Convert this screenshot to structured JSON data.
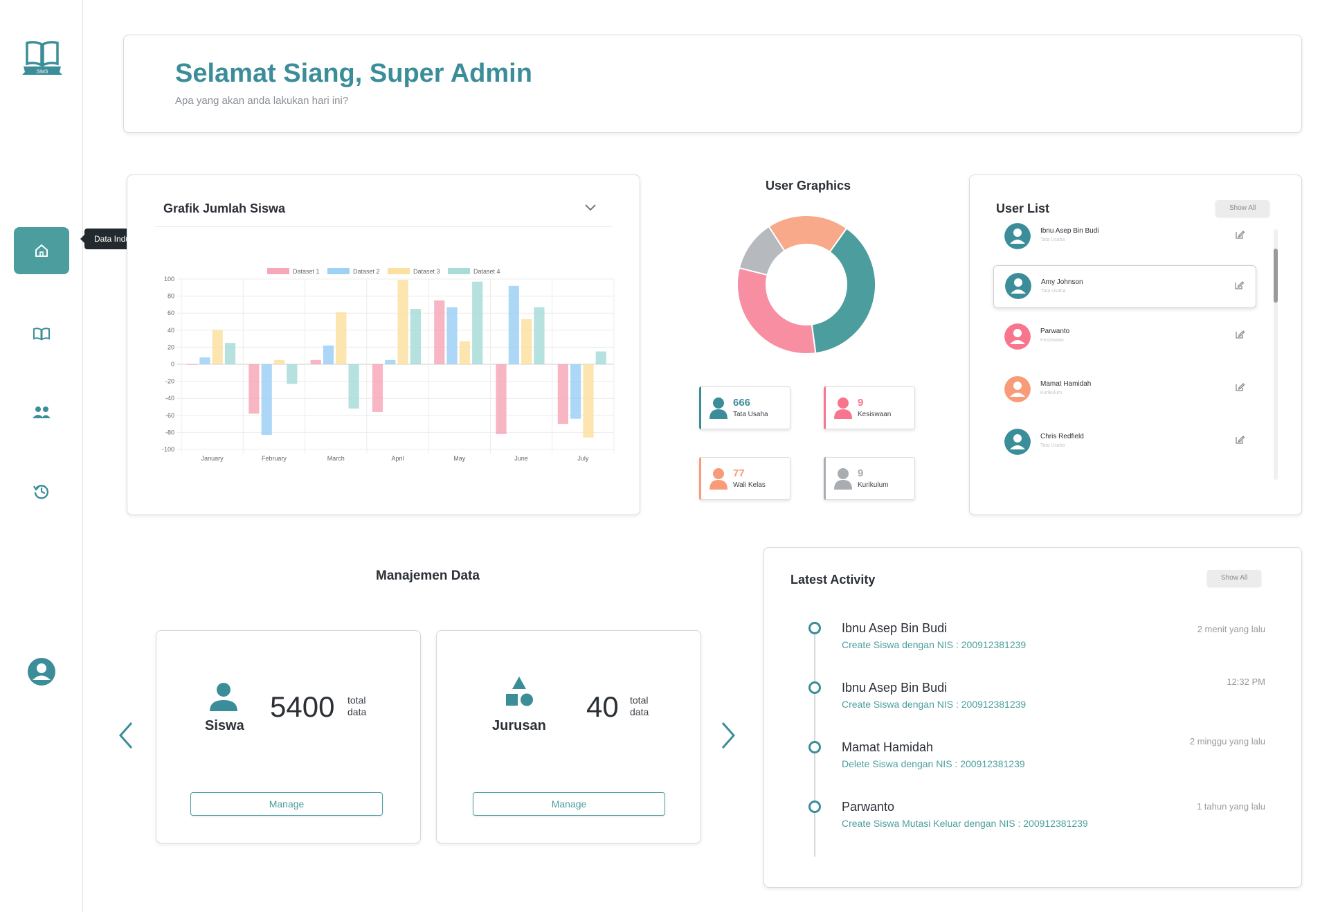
{
  "app": {
    "logo_text": "SIMS"
  },
  "sidebar": {
    "tooltip": "Data Induk Siswa",
    "items": [
      {
        "icon": "home-icon"
      },
      {
        "icon": "book-icon"
      },
      {
        "icon": "users-icon"
      },
      {
        "icon": "history-icon"
      }
    ]
  },
  "header": {
    "greeting": "Selamat Siang, ",
    "user_name": "Super Admin",
    "subtitle": "Apa yang akan anda lakukan hari ini?"
  },
  "chart_data": {
    "type": "bar",
    "title": "Grafik Jumlah Siswa",
    "categories": [
      "January",
      "February",
      "March",
      "April",
      "May",
      "June",
      "July"
    ],
    "series": [
      {
        "name": "Dataset 1",
        "values": [
          0,
          -58,
          5,
          -56,
          75,
          -82,
          -70
        ]
      },
      {
        "name": "Dataset 2",
        "values": [
          8,
          -83,
          22,
          5,
          67,
          92,
          -64
        ]
      },
      {
        "name": "Dataset 3",
        "values": [
          40,
          5,
          61,
          99,
          27,
          53,
          -86
        ]
      },
      {
        "name": "Dataset 4",
        "values": [
          25,
          -23,
          -52,
          65,
          97,
          67,
          15
        ]
      }
    ],
    "colors": [
      "#f7a8b8",
      "#9fd0f5",
      "#fbe0a0",
      "#a8dcd8"
    ],
    "yticks": [
      "100",
      "80",
      "60",
      "40",
      "20",
      "0",
      "-20",
      "-40",
      "-60",
      "-80",
      "-100"
    ],
    "ylim": [
      -100,
      100
    ],
    "legend": "top"
  },
  "user_graphics": {
    "title": "User Graphics",
    "slices": [
      {
        "label": "Tata Usaha",
        "value": 38,
        "color": "#4c9e9e"
      },
      {
        "label": "Kesiswaan",
        "value": 31,
        "color": "#f78ea2"
      },
      {
        "label": "Kurikulum",
        "value": 12,
        "color": "#b6b9bd"
      },
      {
        "label": "Wali Kelas",
        "value": 19,
        "color": "#f8a98a"
      }
    ],
    "stats": [
      {
        "count": "666",
        "label": "Tata Usaha",
        "color": "#3b8d99"
      },
      {
        "count": "9",
        "label": "Kesiswaan",
        "color": "#f7768e"
      },
      {
        "count": "77",
        "label": "Wali Kelas",
        "color": "#f89b78"
      },
      {
        "count": "9",
        "label": "Kurikulum",
        "color": "#a9adb2"
      }
    ]
  },
  "user_list": {
    "title": "User List",
    "show_all": "Show All",
    "users": [
      {
        "name": "Ibnu Asep Bin Budi",
        "role": "Tata Usaha",
        "color": "#3b8d99"
      },
      {
        "name": "Amy Johnson",
        "role": "Tata Usaha",
        "color": "#3b8d99"
      },
      {
        "name": "Parwanto",
        "role": "Kesiswaan",
        "color": "#f7768e"
      },
      {
        "name": "Mamat Hamidah",
        "role": "Kurikulum",
        "color": "#f89b78"
      },
      {
        "name": "Chris Redfield",
        "role": "Tata Usaha",
        "color": "#3b8d99"
      }
    ]
  },
  "data_management": {
    "title": "Manajemen Data",
    "cards": [
      {
        "name": "Siswa",
        "count": "5400",
        "total_label_1": "total",
        "total_label_2": "data",
        "button": "Manage"
      },
      {
        "name": "Jurusan",
        "count": "40",
        "total_label_1": "total",
        "total_label_2": "data",
        "button": "Manage"
      }
    ]
  },
  "latest_activity": {
    "title": "Latest Activity",
    "show_all": "Show All",
    "items": [
      {
        "name": "Ibnu Asep Bin Budi",
        "desc": "Create Siswa dengan NIS : 200912381239",
        "time": "2 menit yang lalu"
      },
      {
        "name": "Ibnu Asep Bin Budi",
        "desc": "Create Siswa dengan NIS : 200912381239",
        "time": "12:32 PM"
      },
      {
        "name": "Mamat Hamidah",
        "desc": "Delete Siswa dengan NIS : 200912381239",
        "time": "2 minggu yang lalu"
      },
      {
        "name": "Parwanto",
        "desc": "Create Siswa Mutasi Keluar dengan NIS : 200912381239",
        "time": "1 tahun yang lalu"
      }
    ]
  }
}
